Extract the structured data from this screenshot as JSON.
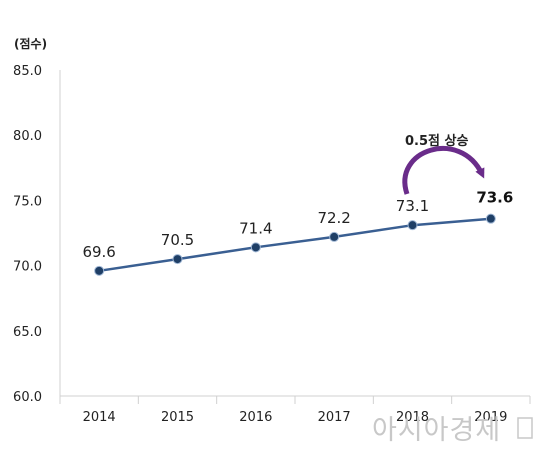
{
  "chart_data": {
    "type": "line",
    "ylabel": "(점수)",
    "x": [
      "2014",
      "2015",
      "2016",
      "2017",
      "2018",
      "2019"
    ],
    "y": [
      69.6,
      70.5,
      71.4,
      72.2,
      73.1,
      73.6
    ],
    "data_labels": [
      "69.6",
      "70.5",
      "71.4",
      "72.2",
      "73.1",
      "73.6"
    ],
    "yticks": [
      "85.0",
      "80.0",
      "75.0",
      "70.0",
      "65.0",
      "60.0"
    ],
    "ylim": [
      60,
      85
    ],
    "grid": false,
    "highlight_point": "2019",
    "annotation": "0.5점 상승",
    "line_color": "#3a5f92",
    "marker_color": "#1f3f66",
    "arrow_color": "#6a2c8a"
  },
  "watermark": "아시아경제"
}
